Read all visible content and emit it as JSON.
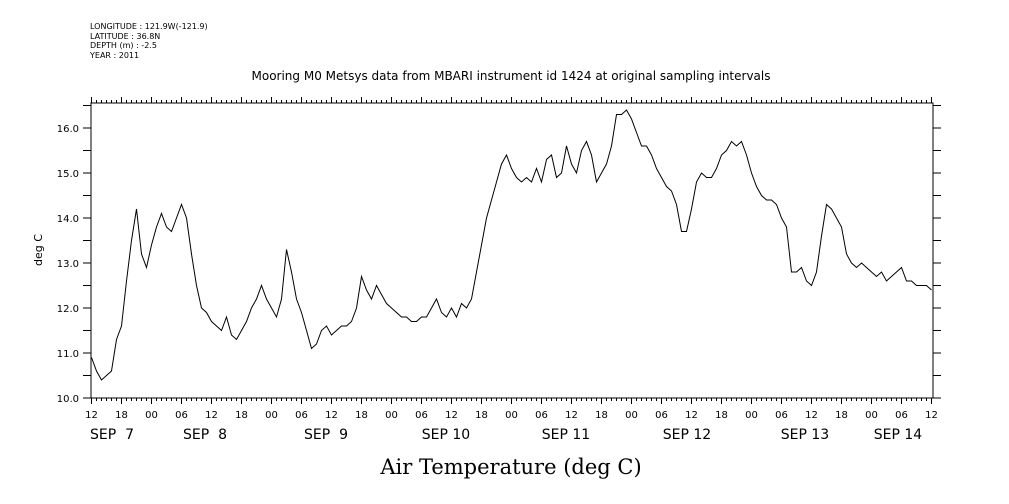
{
  "header": {
    "longitude": "LONGITUDE : 121.9W(-121.9)",
    "latitude": "LATITUDE : 36.8N",
    "depth": "DEPTH (m) : -2.5",
    "year": "YEAR : 2011"
  },
  "chart_data": {
    "type": "line",
    "title": "Mooring M0 Metsys data from MBARI instrument id 1424 at original sampling intervals",
    "xlabel": "Air Temperature (deg C)",
    "ylabel": "deg C",
    "ylim": [
      10.0,
      16.5
    ],
    "yticks": [
      "10.0",
      "11.0",
      "12.0",
      "13.0",
      "14.0",
      "15.0",
      "16.0"
    ],
    "x_unit": "hours since SEP 6 12:00 (2011)",
    "xlim": [
      0,
      170
    ],
    "hour_ticks": [
      "12",
      "18",
      "00",
      "06",
      "12",
      "18",
      "00",
      "06",
      "12",
      "18",
      "00",
      "06",
      "12",
      "18",
      "00",
      "06",
      "12",
      "18",
      "00",
      "06",
      "12",
      "18",
      "00",
      "06",
      "12",
      "18",
      "00",
      "06",
      "12"
    ],
    "day_labels": [
      "SEP  7",
      "SEP  8",
      "SEP  9",
      "SEP 10",
      "SEP 11",
      "SEP 12",
      "SEP 13",
      "SEP 14"
    ],
    "grid": false,
    "series": [
      {
        "x": [
          0,
          1,
          2,
          3,
          4,
          5,
          6,
          7,
          8,
          9,
          10,
          11,
          12,
          13,
          14,
          15,
          16,
          17,
          18,
          19,
          20,
          21,
          22,
          23,
          24,
          25,
          26,
          27,
          28,
          29,
          30,
          31,
          32,
          33,
          34,
          35,
          36,
          37,
          38,
          39,
          40,
          41,
          42,
          43,
          44,
          45,
          46,
          47,
          48,
          49,
          50,
          51,
          52,
          53,
          54,
          55,
          56,
          57,
          58,
          59,
          60,
          61,
          62,
          63,
          64,
          65,
          66,
          67,
          68,
          69,
          70,
          71,
          72,
          73,
          74,
          75,
          76,
          77,
          78,
          79,
          80,
          81,
          82,
          83,
          84,
          85,
          86,
          87,
          88,
          89,
          90,
          91,
          92,
          93,
          94,
          95,
          96,
          97,
          98,
          99,
          100,
          101,
          102,
          103,
          104,
          105,
          106,
          107,
          108,
          109,
          110,
          111,
          112,
          113,
          114,
          115,
          116,
          117,
          118,
          119,
          120,
          121,
          122,
          123,
          124,
          125,
          126,
          127,
          128,
          129,
          130,
          131,
          132,
          133,
          134,
          135,
          136,
          137,
          138,
          139,
          140,
          141,
          142,
          143,
          144,
          145,
          146,
          147,
          148,
          149,
          150,
          151,
          152,
          153,
          154,
          155,
          156,
          157,
          158,
          159,
          160,
          161,
          162,
          163,
          164,
          165,
          166,
          167,
          168
        ],
        "y": [
          10.9,
          10.6,
          10.4,
          10.5,
          10.6,
          11.3,
          11.6,
          12.6,
          13.5,
          14.2,
          13.2,
          12.9,
          13.4,
          13.8,
          14.1,
          13.8,
          13.7,
          14.0,
          14.3,
          14.0,
          13.2,
          12.5,
          12.0,
          11.9,
          11.7,
          11.6,
          11.5,
          11.8,
          11.4,
          11.3,
          11.5,
          11.7,
          12.0,
          12.2,
          12.5,
          12.2,
          12.0,
          11.8,
          12.2,
          13.3,
          12.8,
          12.2,
          11.9,
          11.5,
          11.1,
          11.2,
          11.5,
          11.6,
          11.4,
          11.5,
          11.6,
          11.6,
          11.7,
          12.0,
          12.7,
          12.4,
          12.2,
          12.5,
          12.3,
          12.1,
          12.0,
          11.9,
          11.8,
          11.8,
          11.7,
          11.7,
          11.8,
          11.8,
          12.0,
          12.2,
          11.9,
          11.8,
          12.0,
          11.8,
          12.1,
          12.0,
          12.2,
          12.8,
          13.4,
          14.0,
          14.4,
          14.8,
          15.2,
          15.4,
          15.1,
          14.9,
          14.8,
          14.9,
          14.8,
          15.1,
          14.8,
          15.3,
          15.4,
          14.9,
          15.0,
          15.6,
          15.2,
          15.0,
          15.5,
          15.7,
          15.4,
          14.8,
          15.0,
          15.2,
          15.6,
          16.3,
          16.3,
          16.4,
          16.2,
          15.9,
          15.6,
          15.6,
          15.4,
          15.1,
          14.9,
          14.7,
          14.6,
          14.3,
          13.7,
          13.7,
          14.2,
          14.8,
          15.0,
          14.9,
          14.9,
          15.1,
          15.4,
          15.5,
          15.7,
          15.6,
          15.7,
          15.4,
          15.0,
          14.7,
          14.5,
          14.4,
          14.4,
          14.3,
          14.0,
          13.8,
          12.8,
          12.8,
          12.9,
          12.6,
          12.5,
          12.8,
          13.6,
          14.3,
          14.2,
          14.0,
          13.8,
          13.2,
          13.0,
          12.9,
          13.0,
          12.9,
          12.8,
          12.7,
          12.8,
          12.6,
          12.7,
          12.8,
          12.9,
          12.6,
          12.6,
          12.5,
          12.5,
          12.5,
          12.4
        ]
      }
    ]
  }
}
